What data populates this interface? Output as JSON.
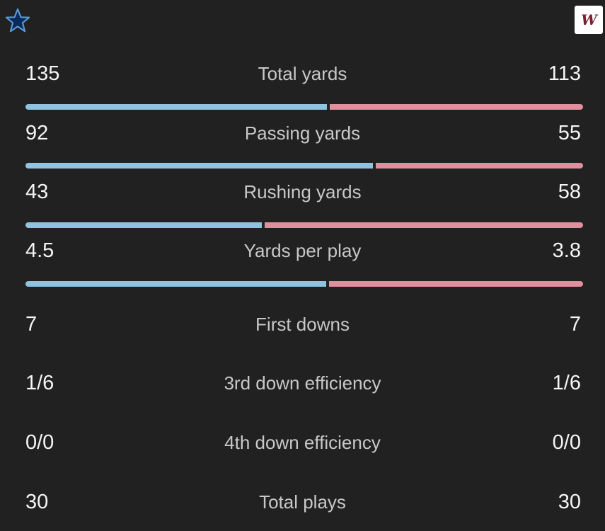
{
  "teams": {
    "home": {
      "logo_icon": "star-icon",
      "color": "#8fc3e0"
    },
    "away": {
      "logo_text": "W",
      "logo_icon": "w-logo-icon",
      "color": "#e08f9e"
    }
  },
  "stats": [
    {
      "label": "Total yards",
      "home": "135",
      "away": "113",
      "bar": true,
      "home_share": 0.544
    },
    {
      "label": "Passing yards",
      "home": "92",
      "away": "55",
      "bar": true,
      "home_share": 0.626
    },
    {
      "label": "Rushing yards",
      "home": "43",
      "away": "58",
      "bar": true,
      "home_share": 0.426
    },
    {
      "label": "Yards per play",
      "home": "4.5",
      "away": "3.8",
      "bar": true,
      "home_share": 0.542
    },
    {
      "label": "First downs",
      "home": "7",
      "away": "7",
      "bar": false
    },
    {
      "label": "3rd down efficiency",
      "home": "1/6",
      "away": "1/6",
      "bar": false
    },
    {
      "label": "4th down efficiency",
      "home": "0/0",
      "away": "0/0",
      "bar": false
    },
    {
      "label": "Total plays",
      "home": "30",
      "away": "30",
      "bar": false
    }
  ]
}
